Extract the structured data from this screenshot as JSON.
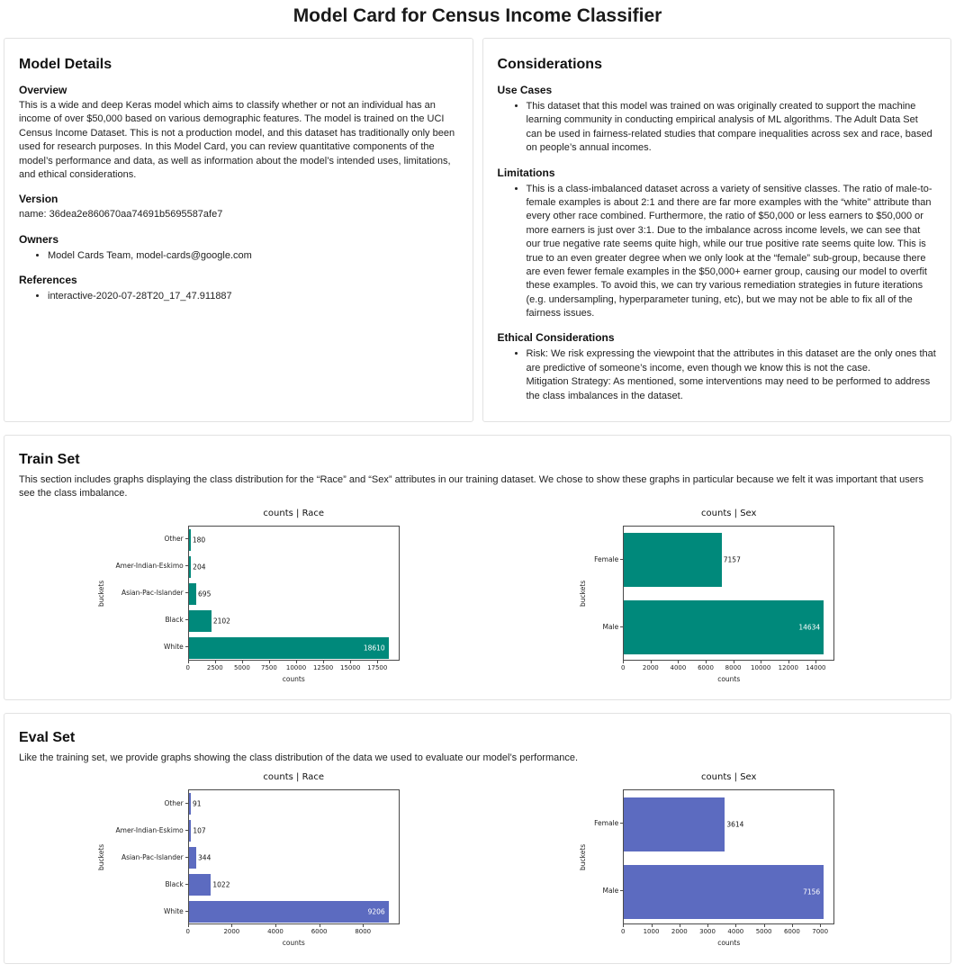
{
  "page_title": "Model Card for Census Income Classifier",
  "model_details": {
    "title": "Model Details",
    "overview_heading": "Overview",
    "overview_text": "This is a wide and deep Keras model which aims to classify whether or not an individual has an income of over $50,000 based on various demographic features. The model is trained on the UCI Census Income Dataset. This is not a production model, and this dataset has traditionally only been used for research purposes. In this Model Card, you can review quantitative components of the model’s performance and data, as well as information about the model’s intended uses, limitations, and ethical considerations.",
    "version_heading": "Version",
    "version_text": "name: 36dea2e860670aa74691b5695587afe7",
    "owners_heading": "Owners",
    "owners_items": [
      "Model Cards Team, model-cards@google.com"
    ],
    "references_heading": "References",
    "references_items": [
      "interactive-2020-07-28T20_17_47.911887"
    ]
  },
  "considerations": {
    "title": "Considerations",
    "use_cases_heading": "Use Cases",
    "use_cases_items": [
      "This dataset that this model was trained on was originally created to support the machine learning community in conducting empirical analysis of ML algorithms. The Adult Data Set can be used in fairness-related studies that compare inequalities across sex and race, based on people’s annual incomes."
    ],
    "limitations_heading": "Limitations",
    "limitations_items": [
      "This is a class-imbalanced dataset across a variety of sensitive classes. The ratio of male-to-female examples is about 2:1 and there are far more examples with the “white” attribute than every other race combined. Furthermore, the ratio of $50,000 or less earners to $50,000 or more earners is just over 3:1. Due to the imbalance across income levels, we can see that our true negative rate seems quite high, while our true positive rate seems quite low. This is true to an even greater degree when we only look at the “female” sub-group, because there are even fewer female examples in the $50,000+ earner group, causing our model to overfit these examples. To avoid this, we can try various remediation strategies in future iterations (e.g. undersampling, hyperparameter tuning, etc), but we may not be able to fix all of the fairness issues."
    ],
    "ethical_heading": "Ethical Considerations",
    "ethical_items": [
      "Risk: We risk expressing the viewpoint that the attributes in this dataset are the only ones that are predictive of someone’s income, even though we know this is not the case.\nMitigation Strategy: As mentioned, some interventions may need to be performed to address the class imbalances in the dataset."
    ]
  },
  "train_set": {
    "title": "Train Set",
    "description": "This section includes graphs displaying the class distribution for the “Race” and “Sex” attributes in our training dataset. We chose to show these graphs in particular because we felt it was important that users see the class imbalance."
  },
  "eval_set": {
    "title": "Eval Set",
    "description": "Like the training set, we provide graphs showing the class distribution of the data we used to evaluate our model’s performance."
  },
  "colors": {
    "train_bar": "#00897b",
    "eval_bar": "#5c6bc0",
    "box_border": "#e2e2e2"
  },
  "chart_data": [
    {
      "id": "train-race",
      "type": "bar",
      "orientation": "horizontal",
      "title": "counts | Race",
      "xlabel": "counts",
      "ylabel": "buckets",
      "categories": [
        "Other",
        "Amer-Indian-Eskimo",
        "Asian-Pac-Islander",
        "Black",
        "White"
      ],
      "values": [
        180,
        204,
        695,
        2102,
        18610
      ],
      "xticks": [
        0,
        2500,
        5000,
        7500,
        10000,
        12500,
        15000,
        17500
      ],
      "xlim": [
        0,
        19540
      ],
      "bar_color": "#00897b",
      "grid": false,
      "legend": "none"
    },
    {
      "id": "train-sex",
      "type": "bar",
      "orientation": "horizontal",
      "title": "counts | Sex",
      "xlabel": "counts",
      "ylabel": "buckets",
      "categories": [
        "Female",
        "Male"
      ],
      "values": [
        7157,
        14634
      ],
      "xticks": [
        0,
        2000,
        4000,
        6000,
        8000,
        10000,
        12000,
        14000
      ],
      "xlim": [
        0,
        15365
      ],
      "bar_color": "#00897b",
      "grid": false,
      "legend": "none"
    },
    {
      "id": "eval-race",
      "type": "bar",
      "orientation": "horizontal",
      "title": "counts | Race",
      "xlabel": "counts",
      "ylabel": "buckets",
      "categories": [
        "Other",
        "Amer-Indian-Eskimo",
        "Asian-Pac-Islander",
        "Black",
        "White"
      ],
      "values": [
        91,
        107,
        344,
        1022,
        9206
      ],
      "xticks": [
        0,
        2000,
        4000,
        6000,
        8000
      ],
      "xlim": [
        0,
        9666
      ],
      "bar_color": "#5c6bc0",
      "grid": false,
      "legend": "none"
    },
    {
      "id": "eval-sex",
      "type": "bar",
      "orientation": "horizontal",
      "title": "counts | Sex",
      "xlabel": "counts",
      "ylabel": "buckets",
      "categories": [
        "Female",
        "Male"
      ],
      "values": [
        3614,
        7156
      ],
      "xticks": [
        0,
        1000,
        2000,
        3000,
        4000,
        5000,
        6000,
        7000
      ],
      "xlim": [
        0,
        7514
      ],
      "bar_color": "#5c6bc0",
      "grid": false,
      "legend": "none"
    }
  ]
}
